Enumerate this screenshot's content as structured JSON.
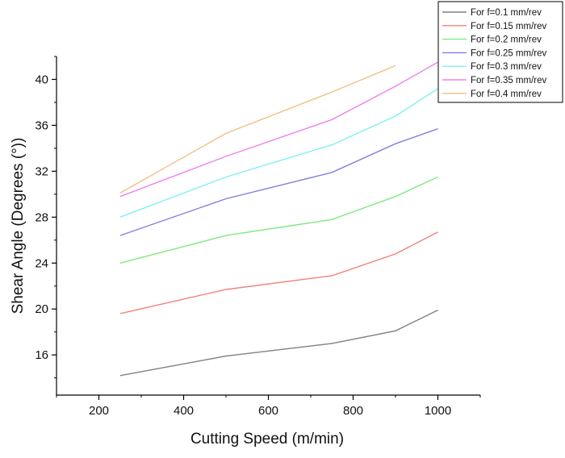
{
  "chart_data": {
    "type": "line",
    "title": "",
    "xlabel": "Cutting Speed (m/min)",
    "ylabel": "Shear Angle (Degrees (°))",
    "xlim": [
      100,
      1100
    ],
    "ylim": [
      12.5,
      42
    ],
    "x_ticks": [
      200,
      400,
      600,
      800,
      1000
    ],
    "y_ticks": [
      16,
      20,
      24,
      28,
      32,
      36,
      40
    ],
    "x_tick_labels": [
      "200",
      "400",
      "600",
      "800",
      "1000"
    ],
    "y_tick_labels": [
      "16",
      "20",
      "24",
      "28",
      "32",
      "36",
      "40"
    ],
    "grid": false,
    "legend_position": "top-right",
    "series": [
      {
        "name": "For f=0.1 mm/rev",
        "color": "#808080",
        "x": [
          250,
          500,
          750,
          900,
          1000
        ],
        "values": [
          14.2,
          15.9,
          17.0,
          18.1,
          19.9
        ]
      },
      {
        "name": "For f=0.15 mm/rev",
        "color": "#f08080",
        "x": [
          250,
          500,
          750,
          900,
          1000
        ],
        "values": [
          19.6,
          21.7,
          22.9,
          24.8,
          26.7
        ]
      },
      {
        "name": "For f=0.2 mm/rev",
        "color": "#80e880",
        "x": [
          250,
          500,
          750,
          900,
          1000
        ],
        "values": [
          24.0,
          26.4,
          27.8,
          29.8,
          31.5
        ]
      },
      {
        "name": "For f=0.25 mm/rev",
        "color": "#8080e0",
        "x": [
          250,
          500,
          750,
          900,
          1000
        ],
        "values": [
          26.4,
          29.6,
          31.9,
          34.4,
          35.7
        ]
      },
      {
        "name": "For f=0.3 mm/rev",
        "color": "#80f0f0",
        "x": [
          250,
          500,
          750,
          900,
          1000
        ],
        "values": [
          28.0,
          31.5,
          34.3,
          36.8,
          39.2
        ]
      },
      {
        "name": "For f=0.35 mm/rev",
        "color": "#f080f0",
        "x": [
          250,
          500,
          750,
          900,
          1000
        ],
        "values": [
          29.8,
          33.3,
          36.5,
          39.4,
          41.5
        ]
      },
      {
        "name": "For f=0.4 mm/rev",
        "color": "#f0c080",
        "x": [
          250,
          500,
          750,
          900
        ],
        "values": [
          30.1,
          35.3,
          38.9,
          41.2
        ]
      }
    ]
  }
}
